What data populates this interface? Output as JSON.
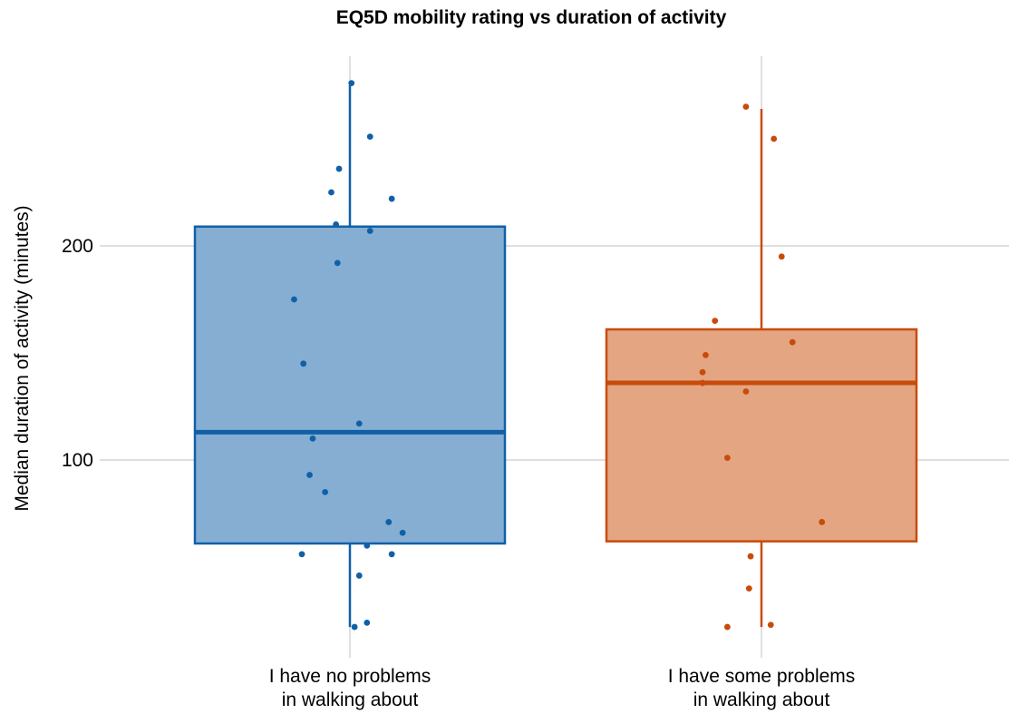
{
  "chart_data": {
    "type": "box",
    "title": "EQ5D mobility rating vs duration of activity",
    "xlabel": "",
    "ylabel": "Median duration of activity (minutes)",
    "ylim": [
      14,
      281
    ],
    "y_ticks": [
      100,
      200
    ],
    "y_tick_labels": [
      "100",
      "200"
    ],
    "grid": true,
    "legend": "none",
    "categories": [
      [
        "I have no problems",
        "in walking about"
      ],
      [
        "I have some problems",
        "in walking about"
      ]
    ],
    "series": [
      {
        "color": "#1060a8",
        "fill": "#86aed2",
        "box": {
          "min": 22,
          "q1": 61,
          "median": 113,
          "q3": 209,
          "max": 275
        },
        "points": [
          {
            "x": 0.01,
            "y": 276
          },
          {
            "x": 0.13,
            "y": 251
          },
          {
            "x": -0.07,
            "y": 236
          },
          {
            "x": -0.12,
            "y": 225
          },
          {
            "x": 0.27,
            "y": 222
          },
          {
            "x": -0.09,
            "y": 210
          },
          {
            "x": 0.13,
            "y": 207
          },
          {
            "x": -0.08,
            "y": 192
          },
          {
            "x": -0.36,
            "y": 175
          },
          {
            "x": -0.3,
            "y": 145
          },
          {
            "x": 0.06,
            "y": 117
          },
          {
            "x": -0.24,
            "y": 110
          },
          {
            "x": -0.26,
            "y": 93
          },
          {
            "x": -0.16,
            "y": 85
          },
          {
            "x": 0.25,
            "y": 71
          },
          {
            "x": 0.34,
            "y": 66
          },
          {
            "x": 0.11,
            "y": 60
          },
          {
            "x": -0.31,
            "y": 56
          },
          {
            "x": 0.27,
            "y": 56
          },
          {
            "x": 0.06,
            "y": 46
          },
          {
            "x": 0.11,
            "y": 24
          },
          {
            "x": 0.03,
            "y": 22
          }
        ]
      },
      {
        "color": "#c84b0c",
        "fill": "#e4a582",
        "box": {
          "min": 22,
          "q1": 62,
          "median": 136,
          "q3": 161,
          "max": 264
        },
        "points": [
          {
            "x": -0.1,
            "y": 265
          },
          {
            "x": 0.08,
            "y": 250
          },
          {
            "x": 0.13,
            "y": 195
          },
          {
            "x": -0.3,
            "y": 165
          },
          {
            "x": 0.2,
            "y": 155
          },
          {
            "x": -0.36,
            "y": 149
          },
          {
            "x": -0.38,
            "y": 141
          },
          {
            "x": -0.38,
            "y": 136
          },
          {
            "x": -0.1,
            "y": 132
          },
          {
            "x": -0.22,
            "y": 101
          },
          {
            "x": 0.39,
            "y": 71
          },
          {
            "x": -0.07,
            "y": 55
          },
          {
            "x": -0.08,
            "y": 40
          },
          {
            "x": 0.06,
            "y": 23
          },
          {
            "x": -0.22,
            "y": 22
          }
        ]
      }
    ]
  }
}
